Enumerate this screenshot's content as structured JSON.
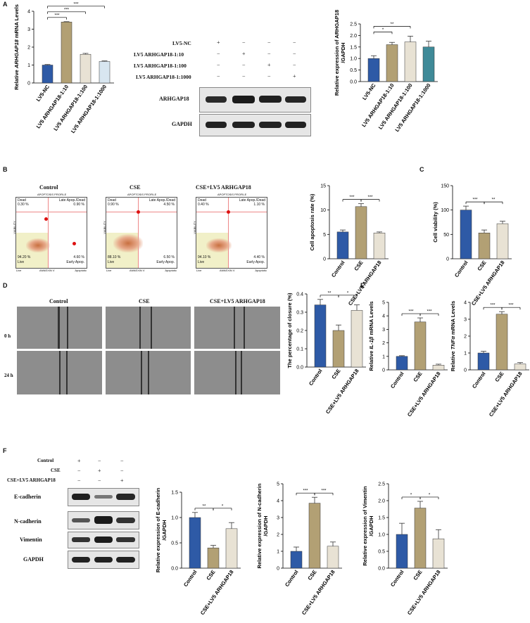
{
  "colors": {
    "blue": "#2e5aa6",
    "tan": "#b2a074",
    "cream": "#e8e2d4",
    "teal": "#3f8a98",
    "error": "#333333"
  },
  "panel_labels": {
    "A": "A",
    "B": "B",
    "C": "C",
    "D": "D",
    "E": "E",
    "F": "F"
  },
  "panelA_blot": {
    "rows": [
      {
        "label": "LV5-NC",
        "signs": [
          "+",
          "−",
          "−",
          "−"
        ]
      },
      {
        "label": "LV5 ARHGAP18-1:10",
        "signs": [
          "−",
          "+",
          "−",
          "−"
        ]
      },
      {
        "label": "LV5 ARHGAP18-1:100",
        "signs": [
          "−",
          "−",
          "+",
          "−"
        ]
      },
      {
        "label": "LV5 ARHGAP18-1:1000",
        "signs": [
          "−",
          "−",
          "−",
          "+"
        ]
      }
    ],
    "bands": [
      "ARHGAP18",
      "GAPDH"
    ]
  },
  "panelB_flow": {
    "titles": [
      "Control",
      "CSE",
      "CSE+LV5 ARHGAP18"
    ],
    "header": "APOPTOSIS PROFILE",
    "y_axis": "VIABILITY",
    "x_axis": "ANNEXIN V",
    "x_end_left": "Live",
    "x_end_right": "Apoptotic",
    "quadrant_names": {
      "dead": "Dead",
      "late": "Late Apop./Dead",
      "live": "Live",
      "early": "Early Apop."
    },
    "plots": [
      {
        "dead": "0.30 %",
        "late": "0.90 %",
        "live": "94.20 %",
        "early": "4.60 %"
      },
      {
        "dead": "0.90 %",
        "late": "4.50 %",
        "live": "88.10 %",
        "early": "6.50 %"
      },
      {
        "dead": "0.40 %",
        "late": "1.10 %",
        "live": "94.10 %",
        "early": "4.40 %"
      }
    ]
  },
  "panelD_images": {
    "titles": [
      "Control",
      "CSE",
      "CSE+LV5 ARHGAP18"
    ],
    "rows": [
      "0 h",
      "24 h"
    ]
  },
  "panelF_blot": {
    "rows": [
      {
        "label": "Control",
        "signs": [
          "+",
          "−",
          "−"
        ]
      },
      {
        "label": "CSE",
        "signs": [
          "−",
          "+",
          "−"
        ]
      },
      {
        "label": "CSE+LV5 ARHGAP18",
        "signs": [
          "−",
          "−",
          "+"
        ]
      }
    ],
    "bands": [
      "E-cadherin",
      "N-cadherin",
      "Vimentin",
      "GAPDH"
    ]
  },
  "chart_data": [
    {
      "id": "a1",
      "type": "bar",
      "panel": "A",
      "categories": [
        "LV5-NC",
        "LV5 ARHGAP18-1:10",
        "LV5 ARHGAP18-1:100",
        "LV5 ARHGAP18-1:1000"
      ],
      "values": [
        1.0,
        3.4,
        1.6,
        1.2
      ],
      "errors": [
        0.03,
        0.02,
        0.05,
        0.03
      ],
      "ylabel_parts": [
        "Relative ",
        "ARHGAP18",
        " mRNA Levels"
      ],
      "ylim": [
        0,
        4
      ],
      "yticks": [
        "0",
        "1",
        "2",
        "3",
        "4"
      ],
      "colors": [
        "#2e5aa6",
        "#b2a074",
        "#e8e2d4",
        "#d8e6f0"
      ],
      "sig": [
        {
          "from": 0,
          "to": 1,
          "text": "***"
        },
        {
          "from": 0,
          "to": 2,
          "text": "***"
        },
        {
          "from": 0,
          "to": 3,
          "text": "***"
        }
      ]
    },
    {
      "id": "a2",
      "type": "bar",
      "panel": "A",
      "categories": [
        "LV5-NC",
        "LV5 ARHGAP18-1:10",
        "LV5 ARHGAP18-1:100",
        "LV5 ARHGAP18-1:1000"
      ],
      "values": [
        1.0,
        1.6,
        1.72,
        1.5
      ],
      "errors": [
        0.12,
        0.1,
        0.25,
        0.25
      ],
      "ylabel_lines": [
        "Relative expression of ARHGAP18",
        "/GAPDH"
      ],
      "ylim": [
        0,
        2.5
      ],
      "yticks": [
        "0.0",
        "0.5",
        "1.0",
        "1.5",
        "2.0",
        "2.5"
      ],
      "colors": [
        "#2e5aa6",
        "#b2a074",
        "#e8e2d4",
        "#3f8a98"
      ],
      "sig": [
        {
          "from": 0,
          "to": 1,
          "text": "*"
        },
        {
          "from": 0,
          "to": 2,
          "text": "**"
        }
      ]
    },
    {
      "id": "b",
      "type": "bar",
      "panel": "B",
      "categories": [
        "Control",
        "CSE",
        "CSE+LV5 ARHGAP18"
      ],
      "values": [
        5.5,
        10.7,
        5.3
      ],
      "errors": [
        0.4,
        0.6,
        0.2
      ],
      "ylabel_lines": [
        "Cell apoptosis rate (%)"
      ],
      "ylim": [
        0,
        15
      ],
      "yticks": [
        "0",
        "5",
        "10",
        "15"
      ],
      "colors": [
        "#2e5aa6",
        "#b2a074",
        "#e8e2d4"
      ],
      "sig": [
        {
          "from": 0,
          "to": 1,
          "text": "***"
        },
        {
          "from": 1,
          "to": 2,
          "text": "***"
        }
      ]
    },
    {
      "id": "c",
      "type": "bar",
      "panel": "C",
      "categories": [
        "Control",
        "CSE",
        "CSE+LV5 ARHGAP18"
      ],
      "values": [
        100,
        53,
        72
      ],
      "errors": [
        8,
        6,
        5
      ],
      "ylabel_lines": [
        "Cell viability (%)"
      ],
      "ylim": [
        0,
        150
      ],
      "yticks": [
        "0",
        "50",
        "100",
        "150"
      ],
      "colors": [
        "#2e5aa6",
        "#b2a074",
        "#e8e2d4"
      ],
      "sig": [
        {
          "from": 0,
          "to": 1,
          "text": "***"
        },
        {
          "from": 1,
          "to": 2,
          "text": "**"
        }
      ]
    },
    {
      "id": "d",
      "type": "bar",
      "panel": "D",
      "categories": [
        "Control",
        "CSE",
        "CSE+LV5 ARHGAP18"
      ],
      "values": [
        0.34,
        0.2,
        0.31
      ],
      "errors": [
        0.03,
        0.03,
        0.03
      ],
      "ylabel_lines": [
        "The percentage of closure (%)"
      ],
      "ylim": [
        0,
        0.4
      ],
      "yticks": [
        "0.0",
        "0.1",
        "0.2",
        "0.3",
        "0.4"
      ],
      "colors": [
        "#2e5aa6",
        "#b2a074",
        "#e8e2d4"
      ],
      "sig": [
        {
          "from": 0,
          "to": 1,
          "text": "**"
        },
        {
          "from": 1,
          "to": 2,
          "text": "*"
        }
      ]
    },
    {
      "id": "e1",
      "type": "bar",
      "panel": "E",
      "categories": [
        "Control",
        "CSE",
        "CSE+LV5 ARHGAP18"
      ],
      "values": [
        1.0,
        3.55,
        0.35
      ],
      "errors": [
        0.05,
        0.3,
        0.07
      ],
      "ylabel_parts": [
        "Relative ",
        "IL-1β",
        " mRNA Levels"
      ],
      "ylim": [
        0,
        5
      ],
      "yticks": [
        "0",
        "1",
        "2",
        "3",
        "4",
        "5"
      ],
      "colors": [
        "#2e5aa6",
        "#b2a074",
        "#e8e2d4"
      ],
      "sig": [
        {
          "from": 0,
          "to": 1,
          "text": "***"
        },
        {
          "from": 1,
          "to": 2,
          "text": "***"
        }
      ]
    },
    {
      "id": "e2",
      "type": "bar",
      "panel": "E",
      "categories": [
        "Control",
        "CSE",
        "CSE+LV5 ARHGAP18"
      ],
      "values": [
        1.0,
        3.3,
        0.35
      ],
      "errors": [
        0.1,
        0.15,
        0.08
      ],
      "ylabel_parts": [
        "Relative ",
        "TNFα",
        " mRNA Levels"
      ],
      "ylim": [
        0,
        4
      ],
      "yticks": [
        "0",
        "1",
        "2",
        "3",
        "4"
      ],
      "colors": [
        "#2e5aa6",
        "#b2a074",
        "#e8e2d4"
      ],
      "sig": [
        {
          "from": 0,
          "to": 1,
          "text": "***"
        },
        {
          "from": 1,
          "to": 2,
          "text": "***"
        }
      ]
    },
    {
      "id": "f1",
      "type": "bar",
      "panel": "F",
      "categories": [
        "Control",
        "CSE",
        "CSE+LV5 ARHGAP18"
      ],
      "values": [
        1.0,
        0.4,
        0.78
      ],
      "errors": [
        0.1,
        0.05,
        0.12
      ],
      "ylabel_lines": [
        "Relative expression of E-cadherin",
        "/GAPDH"
      ],
      "ylim": [
        0,
        1.5
      ],
      "yticks": [
        "0.0",
        "0.5",
        "1.0",
        "1.5"
      ],
      "colors": [
        "#2e5aa6",
        "#b2a074",
        "#e8e2d4"
      ],
      "sig": [
        {
          "from": 0,
          "to": 1,
          "text": "**"
        },
        {
          "from": 1,
          "to": 2,
          "text": "*"
        }
      ]
    },
    {
      "id": "f2",
      "type": "bar",
      "panel": "F",
      "categories": [
        "Control",
        "CSE",
        "CSE+LV5 ARHGAP18"
      ],
      "values": [
        1.0,
        3.85,
        1.3
      ],
      "errors": [
        0.25,
        0.35,
        0.25
      ],
      "ylabel_lines": [
        "Relative expression of N-cadherin",
        "/GAPDH"
      ],
      "ylim": [
        0,
        5
      ],
      "yticks": [
        "0",
        "1",
        "2",
        "3",
        "4",
        "5"
      ],
      "colors": [
        "#2e5aa6",
        "#b2a074",
        "#e8e2d4"
      ],
      "sig": [
        {
          "from": 0,
          "to": 1,
          "text": "***"
        },
        {
          "from": 1,
          "to": 2,
          "text": "***"
        }
      ]
    },
    {
      "id": "f3",
      "type": "bar",
      "panel": "F",
      "categories": [
        "Control",
        "CSE",
        "CSE+LV5 ARHGAP18"
      ],
      "values": [
        1.0,
        1.78,
        0.87
      ],
      "errors": [
        0.33,
        0.2,
        0.27
      ],
      "ylabel_lines": [
        "Relative expression of Vimentin",
        "/GAPDH"
      ],
      "ylim": [
        0,
        2.5
      ],
      "yticks": [
        "0.0",
        "0.5",
        "1.0",
        "1.5",
        "2.0",
        "2.5"
      ],
      "colors": [
        "#2e5aa6",
        "#b2a074",
        "#e8e2d4"
      ],
      "sig": [
        {
          "from": 0,
          "to": 1,
          "text": "*"
        },
        {
          "from": 1,
          "to": 2,
          "text": "*"
        }
      ]
    }
  ]
}
